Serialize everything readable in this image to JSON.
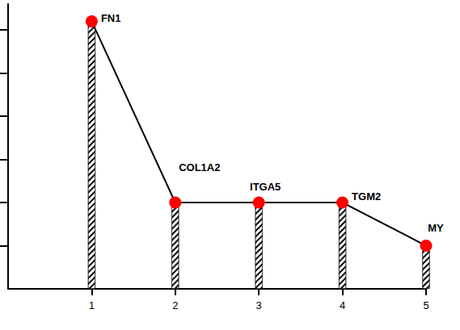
{
  "chart_data": {
    "type": "line",
    "x": [
      1,
      2,
      3,
      4,
      5
    ],
    "values": [
      6.2,
      2,
      2,
      2,
      1
    ],
    "point_labels": [
      "FN1",
      "COL1A2",
      "ITGA5",
      "TGM2",
      "MY"
    ],
    "color": "#ff0000",
    "marker": "circle",
    "xlim": [
      0,
      5
    ],
    "xticks": [
      1,
      2,
      3,
      4,
      5
    ],
    "ylim": [
      0,
      6.6
    ],
    "yticks": [
      1,
      2,
      3,
      4,
      5,
      6
    ],
    "grid": false,
    "tick_labels": "x"
  }
}
